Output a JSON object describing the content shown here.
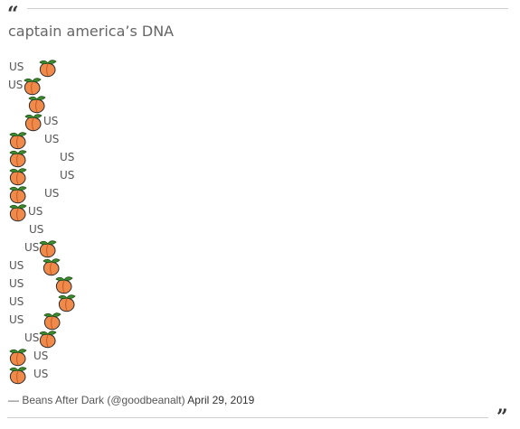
{
  "quote": {
    "open_mark": "“",
    "close_mark": "”",
    "headline": "captain america’s DNA",
    "rows": [
      {
        "parts": [
          "US",
          "peach"
        ]
      },
      {
        "parts": [
          "US",
          "peach"
        ]
      },
      {
        "parts": [
          "peach"
        ]
      },
      {
        "parts": [
          "peach",
          "US"
        ]
      },
      {
        "parts": [
          "peach",
          "US"
        ]
      },
      {
        "parts": [
          "peach",
          "US"
        ]
      },
      {
        "parts": [
          "peach",
          "US"
        ]
      },
      {
        "parts": [
          "peach",
          "US"
        ]
      },
      {
        "parts": [
          "peach",
          "US"
        ]
      },
      {
        "parts": [
          "US"
        ]
      },
      {
        "parts": [
          "US",
          "peach"
        ]
      },
      {
        "parts": [
          "US",
          "peach"
        ]
      },
      {
        "parts": [
          "US",
          "peach"
        ]
      },
      {
        "parts": [
          "US",
          "peach"
        ]
      },
      {
        "parts": [
          "US",
          "peach"
        ]
      },
      {
        "parts": [
          "US",
          "peach"
        ]
      },
      {
        "parts": [
          "peach",
          "US"
        ]
      },
      {
        "parts": [
          "peach",
          "US"
        ]
      }
    ],
    "attribution": {
      "author": "— Beans After Dark (@goodbeanalt)",
      "date": "April 29, 2019"
    }
  },
  "colors": {
    "peach_body": "#f08a4b",
    "peach_leaf": "#3d8b2f",
    "text": "#555555",
    "rule": "#cfcfcf"
  }
}
